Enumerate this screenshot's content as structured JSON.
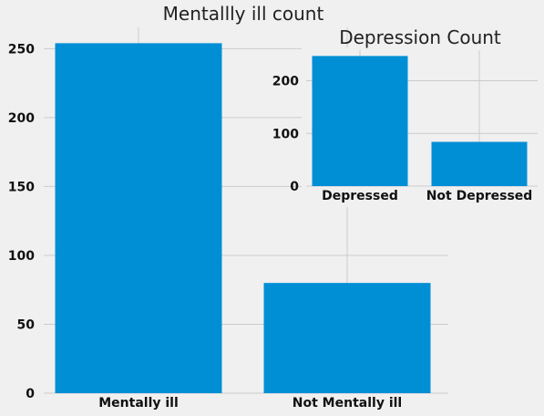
{
  "chart_data": [
    {
      "type": "bar",
      "title": "Mentallly ill count",
      "categories": [
        "Mentally ill",
        "Not Mentally ill"
      ],
      "values": [
        254,
        80
      ],
      "ylim": [
        0,
        265
      ],
      "yticks": [
        "0",
        "50",
        "100",
        "150",
        "200",
        "250"
      ],
      "grid": true,
      "bar_color": "#008fd5"
    },
    {
      "type": "bar",
      "title": "Depression Count",
      "categories": [
        "Depressed",
        "Not Depressed"
      ],
      "values": [
        247,
        84
      ],
      "ylim": [
        0,
        260
      ],
      "yticks": [
        "0",
        "100",
        "200"
      ],
      "grid": true,
      "bar_color": "#008fd5"
    }
  ],
  "colors": {
    "background": "#f0f0f0",
    "grid": "#cbcbcb",
    "bar": "#008fd5"
  }
}
